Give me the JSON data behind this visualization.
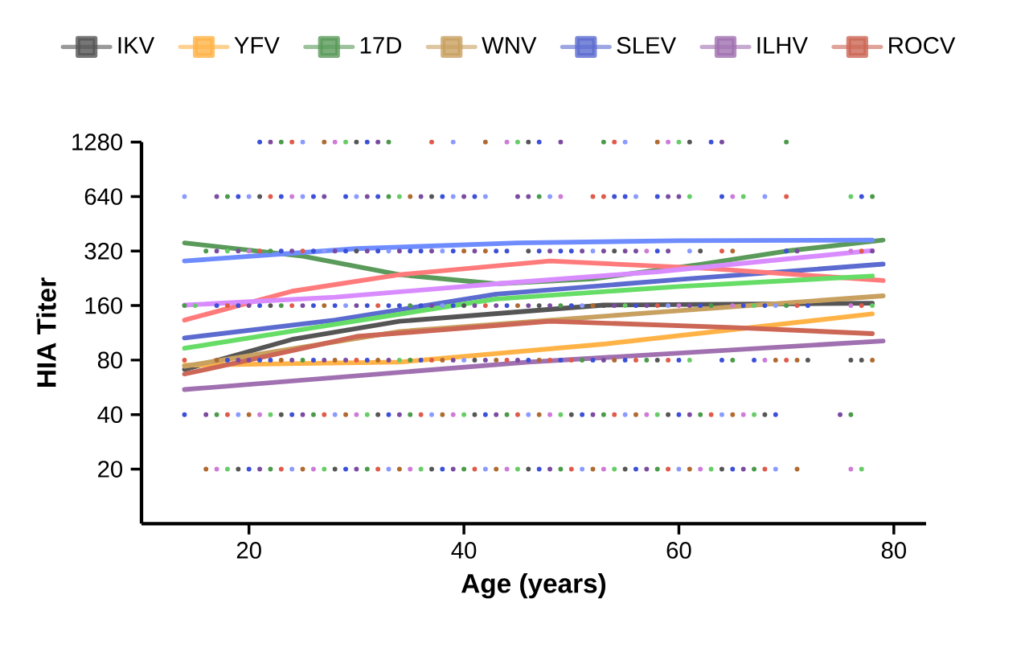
{
  "chart_data": {
    "type": "line",
    "xlabel": "Age (years)",
    "ylabel": "HIA Titer",
    "log": "y",
    "legend": "top",
    "grid": false,
    "xlim": [
      10,
      83
    ],
    "xticks": [
      20,
      40,
      60,
      80
    ],
    "ylim": [
      10,
      1280
    ],
    "yticks": [
      20,
      40,
      80,
      160,
      320,
      640,
      1280
    ],
    "series": [
      {
        "name": "IKV",
        "color": "#555555",
        "x": [
          14,
          24,
          34,
          53,
          78
        ],
        "values": [
          71,
          104,
          131,
          161,
          165
        ]
      },
      {
        "name": "YFV",
        "color": "#ffb347",
        "x": [
          14,
          34,
          53,
          78
        ],
        "values": [
          75,
          78,
          98,
          144
        ]
      },
      {
        "name": "17D",
        "color": "#5a9a5a",
        "x": [
          14,
          25,
          34,
          43,
          52,
          62,
          70,
          79
        ],
        "values": [
          355,
          300,
          237,
          211,
          225,
          270,
          320,
          368
        ]
      },
      {
        "name": "WNV",
        "color": "#c8a060",
        "x": [
          14,
          34,
          58,
          79
        ],
        "values": [
          74,
          115,
          147,
          181
        ]
      },
      {
        "name": "SLEV",
        "color": "#5b6bd0",
        "x": [
          14,
          28,
          43,
          60,
          79
        ],
        "values": [
          106,
          133,
          185,
          223,
          271
        ]
      },
      {
        "name": "ILHV",
        "color": "#a070b0",
        "x": [
          14,
          46,
          79
        ],
        "values": [
          55,
          78,
          102
        ]
      },
      {
        "name": "ROCV",
        "color": "#cc6655",
        "x": [
          14,
          30,
          48,
          65,
          78
        ],
        "values": [
          67,
          108,
          131,
          121,
          112
        ]
      },
      {
        "color": "#6f8cff",
        "x": [
          14,
          30,
          45,
          60,
          78
        ],
        "values": [
          282,
          330,
          355,
          365,
          368
        ]
      },
      {
        "color": "#ff7b7b",
        "x": [
          14,
          24,
          34,
          48,
          63,
          79
        ],
        "values": [
          133,
          192,
          237,
          282,
          256,
          220
        ]
      },
      {
        "color": "#d98cff",
        "x": [
          14,
          28,
          43,
          58,
          78
        ],
        "values": [
          161,
          178,
          211,
          246,
          322
        ]
      },
      {
        "color": "#66dd66",
        "x": [
          14,
          28,
          43,
          60,
          78
        ],
        "values": [
          93,
          126,
          174,
          204,
          233
        ]
      },
      {
        "type": "scatter",
        "x": [
          21,
          22,
          23,
          24,
          25,
          27,
          28,
          29,
          30,
          31,
          32,
          33,
          37,
          39,
          42,
          44,
          45,
          46,
          47,
          49,
          53,
          54,
          55,
          58,
          59,
          60,
          61,
          63,
          64,
          70
        ],
        "values": [
          1280,
          1280,
          1280,
          1280,
          1280,
          1280,
          1280,
          1280,
          1280,
          1280,
          1280,
          1280,
          1280,
          1280,
          1280,
          1280,
          1280,
          1280,
          1280,
          1280,
          1280,
          1280,
          1280,
          1280,
          1280,
          1280,
          1280,
          1280,
          1280,
          1280
        ],
        "colors": [
          "#3b4fd8",
          "#7a4aa0",
          "#4a9a4a",
          "#e05a4a",
          "#8a9aff",
          "#b06a30",
          "#cf7ad8",
          "#66cc66",
          "#555555",
          "#3b4fd8",
          "#7a4aa0",
          "#4a9a4a",
          "#e05a4a",
          "#8a9aff",
          "#b06a30",
          "#cf7ad8",
          "#66cc66",
          "#555555",
          "#3b4fd8",
          "#7a4aa0",
          "#4a9a4a",
          "#e05a4a",
          "#8a9aff",
          "#b06a30",
          "#cf7ad8",
          "#66cc66",
          "#555555",
          "#3b4fd8",
          "#7a4aa0",
          "#4a9a4a"
        ]
      },
      {
        "type": "scatter",
        "x": [
          14,
          17,
          18,
          19,
          20,
          21,
          22,
          23,
          24,
          25,
          26,
          27,
          29,
          30,
          31,
          32,
          33,
          34,
          35,
          36,
          37,
          38,
          39,
          40,
          41,
          42,
          45,
          46,
          47,
          48,
          49,
          52,
          53,
          54,
          55,
          56,
          58,
          59,
          60,
          61,
          64,
          65,
          66,
          68,
          70,
          76,
          77,
          78
        ],
        "values": [
          640,
          640,
          640,
          640,
          640,
          640,
          640,
          640,
          640,
          640,
          640,
          640,
          640,
          640,
          640,
          640,
          640,
          640,
          640,
          640,
          640,
          640,
          640,
          640,
          640,
          640,
          640,
          640,
          640,
          640,
          640,
          640,
          640,
          640,
          640,
          640,
          640,
          640,
          640,
          640,
          640,
          640,
          640,
          640,
          640,
          640,
          640,
          640
        ],
        "colors": [
          "#8a9aff",
          "#7a4aa0",
          "#4a9a4a",
          "#3b4fd8",
          "#8a9aff",
          "#555555",
          "#e05a4a",
          "#3b4fd8",
          "#cf7ad8",
          "#8a9aff",
          "#3b4fd8",
          "#7a4aa0",
          "#3b4fd8",
          "#8a9aff",
          "#7a4aa0",
          "#3b4fd8",
          "#4a9a4a",
          "#66cc66",
          "#b06a30",
          "#7a4aa0",
          "#555555",
          "#3b4fd8",
          "#8a9aff",
          "#7a4aa0",
          "#3b4fd8",
          "#8a9aff",
          "#7a4aa0",
          "#7a4aa0",
          "#4a9a4a",
          "#8a9aff",
          "#cf7ad8",
          "#e05a4a",
          "#e05a4a",
          "#3b4fd8",
          "#3b4fd8",
          "#8a9aff",
          "#3b4fd8",
          "#7a4aa0",
          "#7a4aa0",
          "#66cc66",
          "#3b4fd8",
          "#cf7ad8",
          "#66cc66",
          "#8a9aff",
          "#e05a4a",
          "#66cc66",
          "#3b4fd8",
          "#4a9a4a"
        ]
      },
      {
        "type": "scatter",
        "x": [
          16,
          17,
          18,
          19,
          20,
          21,
          22,
          23,
          24,
          25,
          26,
          27,
          28,
          29,
          30,
          31,
          32,
          33,
          34,
          35,
          36,
          37,
          38,
          39,
          40,
          41,
          42,
          43,
          44,
          46,
          47,
          48,
          49,
          50,
          51,
          52,
          53,
          54,
          55,
          56,
          57,
          58,
          59,
          61,
          62,
          64,
          65,
          70,
          71,
          76,
          77,
          78
        ],
        "values": [
          320,
          320,
          320,
          320,
          320,
          320,
          320,
          320,
          320,
          320,
          320,
          320,
          320,
          320,
          320,
          320,
          320,
          320,
          320,
          320,
          320,
          320,
          320,
          320,
          320,
          320,
          320,
          320,
          320,
          320,
          320,
          320,
          320,
          320,
          320,
          320,
          320,
          320,
          320,
          320,
          320,
          320,
          320,
          320,
          320,
          320,
          320,
          320,
          320,
          320,
          320,
          320
        ],
        "colors": [
          "#4a9a4a",
          "#7a4aa0",
          "#66cc66",
          "#7a4aa0",
          "#cf7ad8",
          "#e05a4a",
          "#4a9a4a",
          "#3b4fd8",
          "#7a4aa0",
          "#e05a4a",
          "#3b4fd8",
          "#8a9aff",
          "#7a4aa0",
          "#3b4fd8",
          "#555555",
          "#7a4aa0",
          "#3b4fd8",
          "#8a9aff",
          "#7a4aa0",
          "#3b4fd8",
          "#3b4fd8",
          "#7a4aa0",
          "#8a9aff",
          "#3b4fd8",
          "#b06a30",
          "#7a4aa0",
          "#b06a30",
          "#3b4fd8",
          "#3b4fd8",
          "#555555",
          "#3b4fd8",
          "#7a4aa0",
          "#3b4fd8",
          "#3b4fd8",
          "#7a4aa0",
          "#8a9aff",
          "#7a4aa0",
          "#555555",
          "#7a4aa0",
          "#7a4aa0",
          "#cf7ad8",
          "#3b4fd8",
          "#7a4aa0",
          "#8a9aff",
          "#555555",
          "#e05a4a",
          "#b06a30",
          "#3b4fd8",
          "#7a4aa0",
          "#cf7ad8",
          "#e05a4a",
          "#7a4aa0"
        ]
      },
      {
        "type": "scatter",
        "x": [
          14,
          15,
          17,
          18,
          19,
          20,
          21,
          22,
          23,
          24,
          25,
          26,
          27,
          28,
          29,
          30,
          31,
          32,
          33,
          34,
          35,
          36,
          37,
          38,
          39,
          40,
          41,
          42,
          43,
          44,
          45,
          46,
          47,
          48,
          49,
          50,
          51,
          52,
          53,
          54,
          55,
          56,
          57,
          58,
          59,
          60,
          61,
          62,
          63,
          65,
          66,
          67,
          68,
          69,
          70,
          71,
          72,
          76,
          77,
          78
        ],
        "values": [
          160,
          160,
          160,
          160,
          160,
          160,
          160,
          160,
          160,
          160,
          160,
          160,
          160,
          160,
          160,
          160,
          160,
          160,
          160,
          160,
          160,
          160,
          160,
          160,
          160,
          160,
          160,
          160,
          160,
          160,
          160,
          160,
          160,
          160,
          160,
          160,
          160,
          160,
          160,
          160,
          160,
          160,
          160,
          160,
          160,
          160,
          160,
          160,
          160,
          160,
          160,
          160,
          160,
          160,
          160,
          160,
          160,
          160,
          160,
          160
        ],
        "colors": [
          "#4a9a4a",
          "#66cc66",
          "#3b4fd8",
          "#e05a4a",
          "#3b4fd8",
          "#7a4aa0",
          "#3b4fd8",
          "#555555",
          "#4a9a4a",
          "#e05a4a",
          "#7a4aa0",
          "#3b4fd8",
          "#b06a30",
          "#3b4fd8",
          "#8a9aff",
          "#7a4aa0",
          "#3b4fd8",
          "#e05a4a",
          "#3b4fd8",
          "#3b4fd8",
          "#4a9a4a",
          "#3b4fd8",
          "#7a4aa0",
          "#8a9aff",
          "#3b4fd8",
          "#555555",
          "#7a4aa0",
          "#e05a4a",
          "#7a4aa0",
          "#3b4fd8",
          "#b06a30",
          "#7a4aa0",
          "#555555",
          "#7a4aa0",
          "#4a9a4a",
          "#3b4fd8",
          "#8a9aff",
          "#b06a30",
          "#555555",
          "#7a4aa0",
          "#66cc66",
          "#3b4fd8",
          "#7a4aa0",
          "#e05a4a",
          "#8a9aff",
          "#cf7ad8",
          "#7a4aa0",
          "#3b4fd8",
          "#4a9a4a",
          "#cf7ad8",
          "#3b4fd8",
          "#66cc66",
          "#3b4fd8",
          "#8a9aff",
          "#4a9a4a",
          "#e05a4a",
          "#3b4fd8",
          "#cf7ad8",
          "#e05a4a",
          "#66cc66"
        ]
      },
      {
        "type": "scatter",
        "x": [
          14,
          17,
          18,
          19,
          20,
          21,
          22,
          23,
          24,
          25,
          26,
          27,
          28,
          29,
          30,
          31,
          32,
          33,
          34,
          35,
          36,
          37,
          38,
          39,
          40,
          41,
          42,
          43,
          44,
          45,
          46,
          47,
          48,
          49,
          50,
          51,
          52,
          53,
          54,
          55,
          56,
          57,
          58,
          59,
          60,
          61,
          64,
          65,
          67,
          68,
          69,
          70,
          71,
          72,
          76,
          77,
          78
        ],
        "values": [
          80,
          80,
          80,
          80,
          80,
          80,
          80,
          80,
          80,
          80,
          80,
          80,
          80,
          80,
          80,
          80,
          80,
          80,
          80,
          80,
          80,
          80,
          80,
          80,
          80,
          80,
          80,
          80,
          80,
          80,
          80,
          80,
          80,
          80,
          80,
          80,
          80,
          80,
          80,
          80,
          80,
          80,
          80,
          80,
          80,
          80,
          80,
          80,
          80,
          80,
          80,
          80,
          80,
          80,
          80,
          80,
          80
        ],
        "colors": [
          "#e05a4a",
          "#b06a30",
          "#3b4fd8",
          "#7a4aa0",
          "#7a4aa0",
          "#3b4fd8",
          "#3b4fd8",
          "#b06a30",
          "#7a4aa0",
          "#4a9a4a",
          "#3b4fd8",
          "#7a4aa0",
          "#b06a30",
          "#7a4aa0",
          "#e05a4a",
          "#3b4fd8",
          "#b06a30",
          "#7a4aa0",
          "#66cc66",
          "#4a9a4a",
          "#3b4fd8",
          "#e05a4a",
          "#b06a30",
          "#7a4aa0",
          "#8a9aff",
          "#555555",
          "#7a4aa0",
          "#b06a30",
          "#e05a4a",
          "#7a4aa0",
          "#3b4fd8",
          "#b06a30",
          "#e05a4a",
          "#3b4fd8",
          "#e05a4a",
          "#4a9a4a",
          "#3b4fd8",
          "#7a4aa0",
          "#b06a30",
          "#3b4fd8",
          "#e05a4a",
          "#4a9a4a",
          "#555555",
          "#e05a4a",
          "#3b4fd8",
          "#66cc66",
          "#3b4fd8",
          "#4a9a4a",
          "#3b4fd8",
          "#cf7ad8",
          "#b06a30",
          "#e05a4a",
          "#b06a30",
          "#555555",
          "#555555",
          "#555555",
          "#b06a30"
        ]
      },
      {
        "type": "scatter",
        "x": [
          14,
          16,
          17,
          18,
          19,
          20,
          21,
          22,
          23,
          24,
          25,
          26,
          27,
          28,
          29,
          30,
          31,
          32,
          33,
          34,
          35,
          36,
          37,
          38,
          39,
          40,
          41,
          42,
          43,
          44,
          45,
          46,
          47,
          48,
          49,
          50,
          51,
          52,
          53,
          54,
          55,
          56,
          57,
          58,
          59,
          60,
          61,
          62,
          63,
          64,
          65,
          66,
          67,
          68,
          69,
          75,
          76
        ],
        "values": [
          40,
          40,
          40,
          40,
          40,
          40,
          40,
          40,
          40,
          40,
          40,
          40,
          40,
          40,
          40,
          40,
          40,
          40,
          40,
          40,
          40,
          40,
          40,
          40,
          40,
          40,
          40,
          40,
          40,
          40,
          40,
          40,
          40,
          40,
          40,
          40,
          40,
          40,
          40,
          40,
          40,
          40,
          40,
          40,
          40,
          40,
          40,
          40,
          40,
          40,
          40,
          40,
          40,
          40,
          40,
          40,
          40
        ],
        "colors": [
          "#3b4fd8",
          "#7a4aa0",
          "#4a9a4a",
          "#e05a4a",
          "#8a9aff",
          "#b06a30",
          "#cf7ad8",
          "#66cc66",
          "#555555",
          "#3b4fd8",
          "#7a4aa0",
          "#4a9a4a",
          "#e05a4a",
          "#8a9aff",
          "#b06a30",
          "#cf7ad8",
          "#66cc66",
          "#555555",
          "#3b4fd8",
          "#7a4aa0",
          "#4a9a4a",
          "#e05a4a",
          "#8a9aff",
          "#b06a30",
          "#cf7ad8",
          "#66cc66",
          "#555555",
          "#3b4fd8",
          "#7a4aa0",
          "#4a9a4a",
          "#e05a4a",
          "#8a9aff",
          "#b06a30",
          "#cf7ad8",
          "#66cc66",
          "#555555",
          "#3b4fd8",
          "#7a4aa0",
          "#4a9a4a",
          "#e05a4a",
          "#8a9aff",
          "#b06a30",
          "#cf7ad8",
          "#66cc66",
          "#555555",
          "#3b4fd8",
          "#7a4aa0",
          "#4a9a4a",
          "#e05a4a",
          "#8a9aff",
          "#b06a30",
          "#cf7ad8",
          "#66cc66",
          "#555555",
          "#3b4fd8",
          "#7a4aa0",
          "#4a9a4a"
        ]
      },
      {
        "type": "scatter",
        "x": [
          16,
          17,
          18,
          19,
          20,
          21,
          22,
          23,
          24,
          25,
          26,
          27,
          28,
          29,
          30,
          31,
          32,
          33,
          34,
          35,
          36,
          37,
          38,
          39,
          40,
          41,
          42,
          43,
          44,
          45,
          46,
          47,
          48,
          49,
          50,
          51,
          52,
          53,
          54,
          55,
          56,
          57,
          58,
          59,
          60,
          61,
          62,
          63,
          64,
          65,
          66,
          67,
          68,
          69,
          71,
          76,
          77
        ],
        "values": [
          20,
          20,
          20,
          20,
          20,
          20,
          20,
          20,
          20,
          20,
          20,
          20,
          20,
          20,
          20,
          20,
          20,
          20,
          20,
          20,
          20,
          20,
          20,
          20,
          20,
          20,
          20,
          20,
          20,
          20,
          20,
          20,
          20,
          20,
          20,
          20,
          20,
          20,
          20,
          20,
          20,
          20,
          20,
          20,
          20,
          20,
          20,
          20,
          20,
          20,
          20,
          20,
          20,
          20,
          20,
          20,
          20
        ],
        "colors": [
          "#b06a30",
          "#cf7ad8",
          "#66cc66",
          "#555555",
          "#3b4fd8",
          "#7a4aa0",
          "#4a9a4a",
          "#e05a4a",
          "#8a9aff",
          "#b06a30",
          "#cf7ad8",
          "#66cc66",
          "#555555",
          "#3b4fd8",
          "#7a4aa0",
          "#4a9a4a",
          "#e05a4a",
          "#8a9aff",
          "#b06a30",
          "#cf7ad8",
          "#66cc66",
          "#555555",
          "#3b4fd8",
          "#7a4aa0",
          "#4a9a4a",
          "#e05a4a",
          "#8a9aff",
          "#b06a30",
          "#cf7ad8",
          "#66cc66",
          "#555555",
          "#3b4fd8",
          "#7a4aa0",
          "#4a9a4a",
          "#e05a4a",
          "#8a9aff",
          "#b06a30",
          "#cf7ad8",
          "#66cc66",
          "#555555",
          "#3b4fd8",
          "#7a4aa0",
          "#4a9a4a",
          "#e05a4a",
          "#8a9aff",
          "#b06a30",
          "#cf7ad8",
          "#66cc66",
          "#555555",
          "#3b4fd8",
          "#7a4aa0",
          "#4a9a4a",
          "#e05a4a",
          "#8a9aff",
          "#b06a30",
          "#cf7ad8",
          "#66cc66"
        ]
      }
    ]
  }
}
